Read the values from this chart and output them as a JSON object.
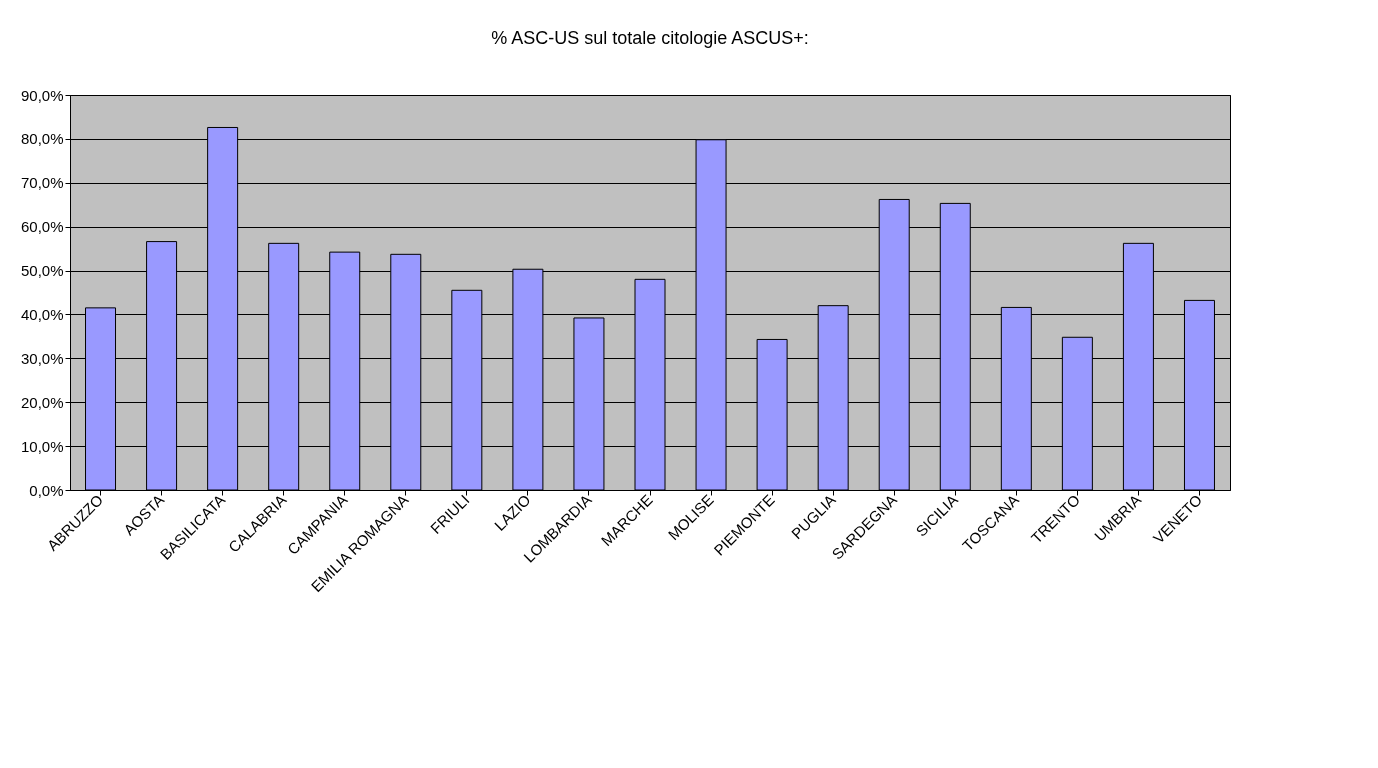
{
  "chart_data": {
    "type": "bar",
    "title": "% ASC-US sul totale citologie ASCUS+:",
    "categories": [
      "ABRUZZO",
      "AOSTA",
      "BASILICATA",
      "CALABRIA",
      "CAMPANIA",
      "EMILIA ROMAGNA",
      "FRIULI",
      "LAZIO",
      "LOMBARDIA",
      "MARCHE",
      "MOLISE",
      "PIEMONTE",
      "PUGLIA",
      "SARDEGNA",
      "SICILIA",
      "TOSCANA",
      "TRENTO",
      "UMBRIA",
      "VENETO"
    ],
    "values": [
      41.5,
      56.6,
      82.6,
      56.2,
      54.2,
      53.7,
      45.5,
      50.3,
      39.2,
      48.0,
      79.8,
      34.3,
      42.0,
      66.2,
      65.3,
      41.6,
      34.8,
      56.2,
      43.2
    ],
    "color": "#9999ff",
    "ylim": [
      0,
      90
    ],
    "yticks": [
      {
        "value": 0,
        "label": "0,0%"
      },
      {
        "value": 10,
        "label": "10,0%"
      },
      {
        "value": 20,
        "label": "20,0%"
      },
      {
        "value": 30,
        "label": "30,0%"
      },
      {
        "value": 40,
        "label": "40,0%"
      },
      {
        "value": 50,
        "label": "50,0%"
      },
      {
        "value": 60,
        "label": "60,0%"
      },
      {
        "value": 70,
        "label": "70,0%"
      },
      {
        "value": 80,
        "label": "80,0%"
      },
      {
        "value": 90,
        "label": "90,0%"
      }
    ],
    "grid": "y"
  }
}
